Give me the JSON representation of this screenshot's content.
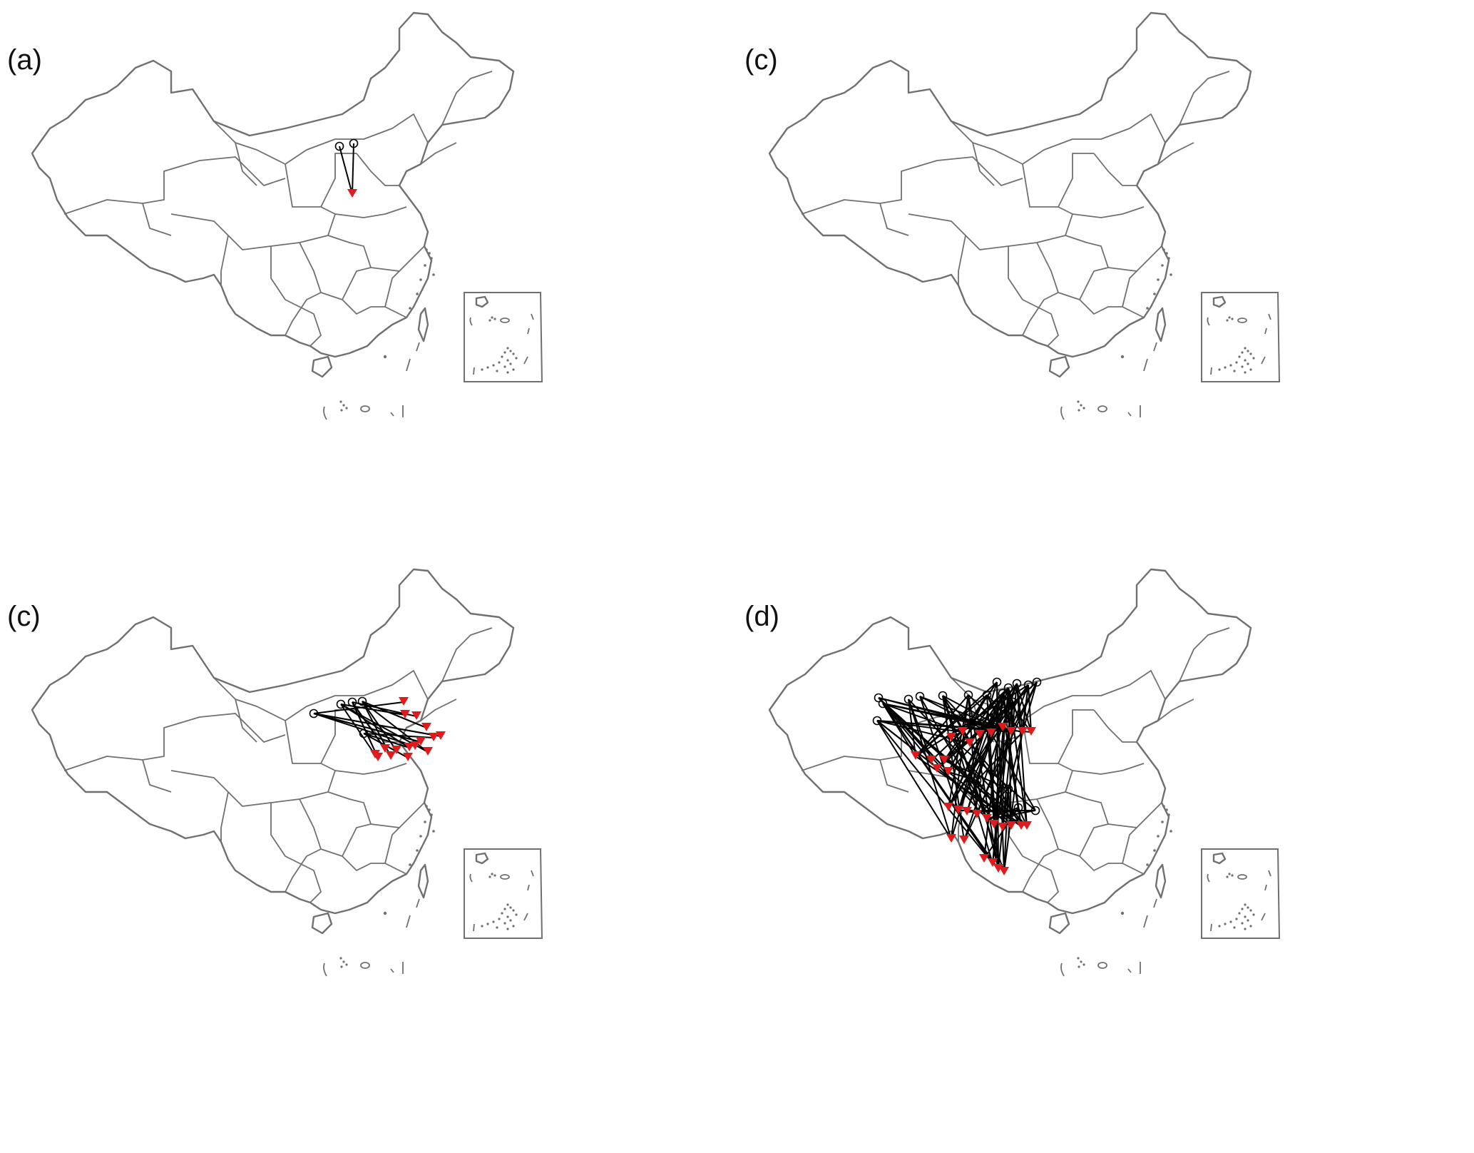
{
  "panels": [
    {
      "label": "(a)",
      "flow_density": "few",
      "origins": 2,
      "destinations": 1
    },
    {
      "label": "(c)",
      "flow_density": "none",
      "origins": 0,
      "destinations": 0
    },
    {
      "label": "(c)",
      "flow_density": "moderate",
      "origins": 5,
      "destinations": 16
    },
    {
      "label": "(d)",
      "flow_density": "dense",
      "origins": 22,
      "destinations": 30
    }
  ],
  "colors": {
    "map_border": "#707070",
    "flow_line": "#000000",
    "origin_marker": "#000000",
    "destination_marker": "#e31a1c",
    "background": "#ffffff"
  },
  "legend": {
    "origin_symbol": "open-circle",
    "destination_symbol": "red-down-triangle"
  }
}
